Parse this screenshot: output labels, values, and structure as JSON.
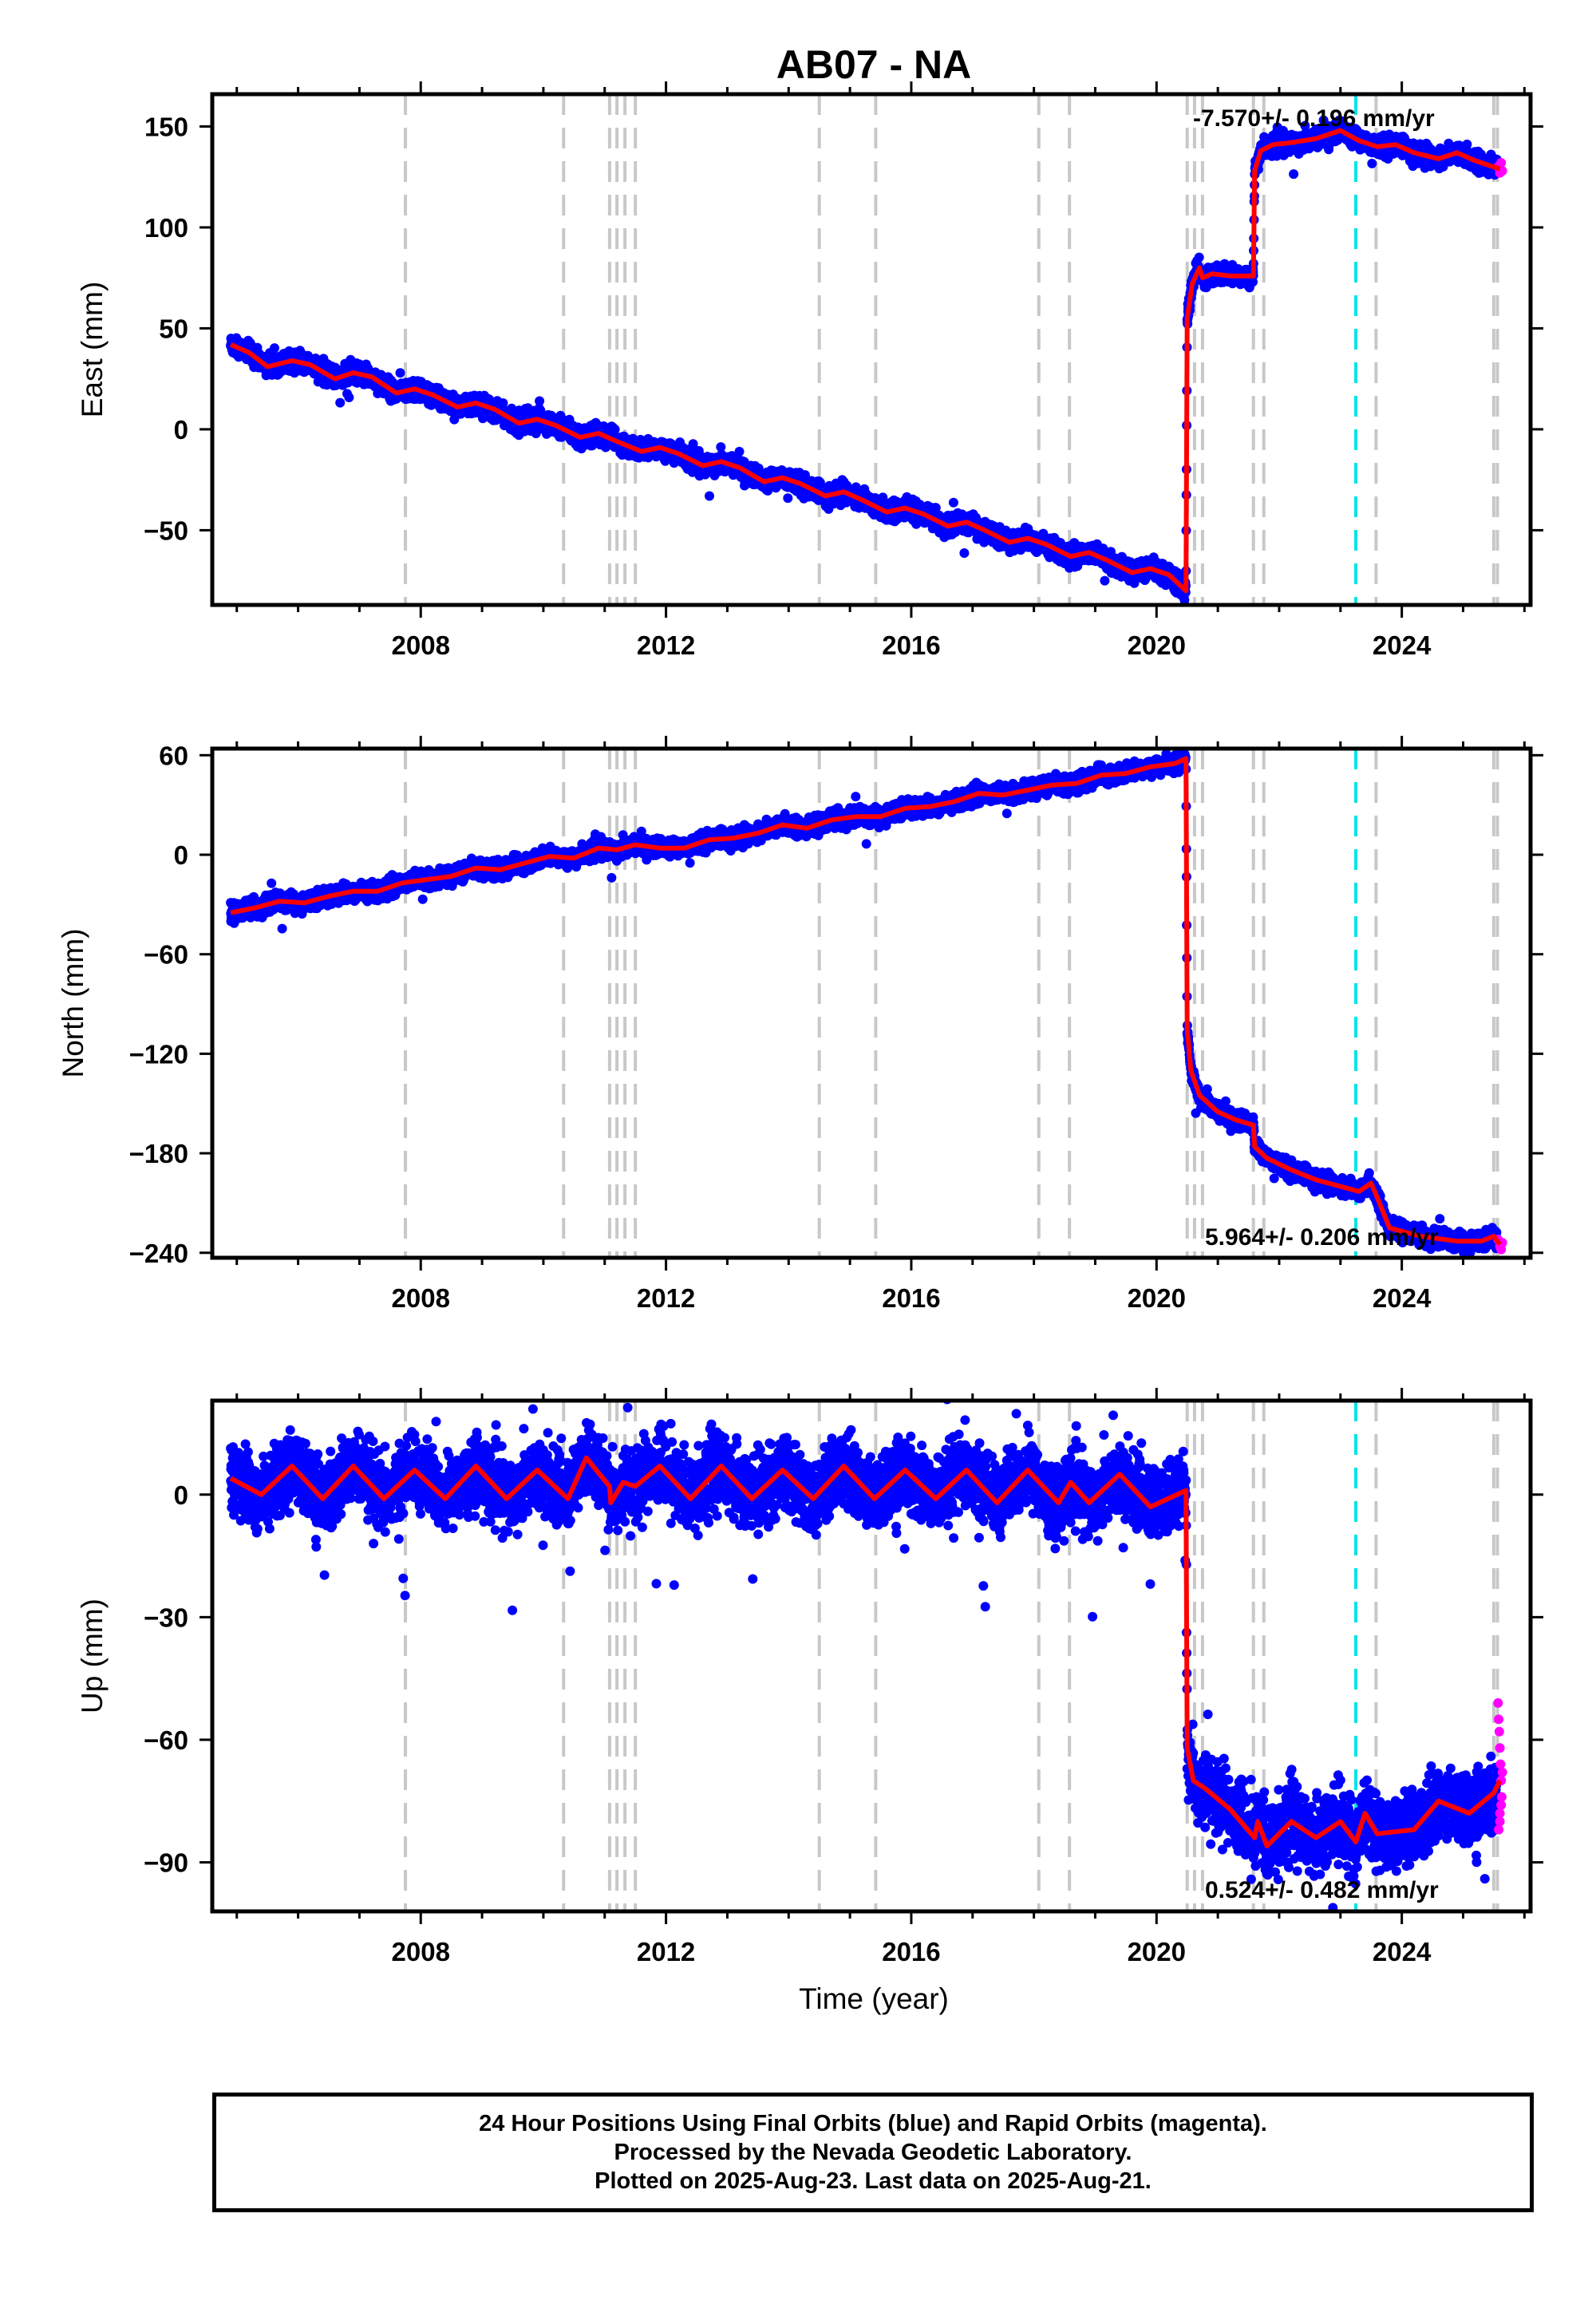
{
  "title": "AB07 - NA",
  "footer": {
    "line1": "24 Hour Positions Using Final Orbits (blue) and Rapid Orbits (magenta).",
    "line2": "Processed by the Nevada Geodetic Laboratory.",
    "line3": "Plotted on 2025-Aug-23. Last data on 2025-Aug-21."
  },
  "colors": {
    "final": "#0000ff",
    "rapid": "#ff00ff",
    "model": "#ff0000",
    "equipment": "#c8c8c8",
    "earthquake": "#00e5e5"
  },
  "chart_data": [
    {
      "type": "scatter",
      "ylabel": "East (mm)",
      "xlabel": "",
      "xlim": [
        2004.6,
        2026.1
      ],
      "ylim": [
        -87,
        166
      ],
      "xticks": [
        2008,
        2012,
        2016,
        2020,
        2024
      ],
      "yticks": [
        -50,
        0,
        50,
        100,
        150
      ],
      "rate_text": "-7.570+/- 0.196 mm/yr",
      "equipment_lines": [
        2007.75,
        2010.33,
        2011.08,
        2011.2,
        2011.33,
        2011.5,
        2014.5,
        2015.42,
        2018.08,
        2018.58,
        2020.5,
        2020.62,
        2020.75,
        2021.58,
        2021.75,
        2023.58,
        2025.5,
        2025.56
      ],
      "earthquake_lines": [
        2023.25
      ],
      "model_nodes": [
        [
          2004.9,
          42
        ],
        [
          2005.2,
          38
        ],
        [
          2005.5,
          31
        ],
        [
          2005.9,
          34
        ],
        [
          2006.2,
          32
        ],
        [
          2006.6,
          25
        ],
        [
          2006.9,
          28
        ],
        [
          2007.2,
          26
        ],
        [
          2007.6,
          18
        ],
        [
          2007.9,
          20
        ],
        [
          2008.2,
          17
        ],
        [
          2008.6,
          11
        ],
        [
          2008.9,
          13
        ],
        [
          2009.2,
          10
        ],
        [
          2009.6,
          3
        ],
        [
          2009.9,
          5
        ],
        [
          2010.2,
          2
        ],
        [
          2010.6,
          -4
        ],
        [
          2010.9,
          -2
        ],
        [
          2011.2,
          -6
        ],
        [
          2011.6,
          -11
        ],
        [
          2011.9,
          -9
        ],
        [
          2012.2,
          -12
        ],
        [
          2012.6,
          -18
        ],
        [
          2012.9,
          -16
        ],
        [
          2013.2,
          -19
        ],
        [
          2013.6,
          -26
        ],
        [
          2013.9,
          -24
        ],
        [
          2014.2,
          -27
        ],
        [
          2014.6,
          -33
        ],
        [
          2014.9,
          -31
        ],
        [
          2015.2,
          -35
        ],
        [
          2015.6,
          -41
        ],
        [
          2015.9,
          -39
        ],
        [
          2016.2,
          -42
        ],
        [
          2016.6,
          -48
        ],
        [
          2016.9,
          -46
        ],
        [
          2017.2,
          -50
        ],
        [
          2017.6,
          -56
        ],
        [
          2017.9,
          -54
        ],
        [
          2018.2,
          -57
        ],
        [
          2018.6,
          -63
        ],
        [
          2018.9,
          -61
        ],
        [
          2019.2,
          -65
        ],
        [
          2019.6,
          -71
        ],
        [
          2019.9,
          -69
        ],
        [
          2020.2,
          -72
        ],
        [
          2020.48,
          -80
        ],
        [
          2020.5,
          55
        ],
        [
          2020.58,
          72
        ],
        [
          2020.7,
          80
        ],
        [
          2020.75,
          75
        ],
        [
          2020.9,
          77
        ],
        [
          2021.2,
          76
        ],
        [
          2021.58,
          76
        ],
        [
          2021.6,
          128
        ],
        [
          2021.7,
          138
        ],
        [
          2021.9,
          141
        ],
        [
          2022.2,
          142
        ],
        [
          2022.6,
          144
        ],
        [
          2023.0,
          148
        ],
        [
          2023.3,
          143
        ],
        [
          2023.6,
          140
        ],
        [
          2023.9,
          141
        ],
        [
          2024.2,
          137
        ],
        [
          2024.6,
          134
        ],
        [
          2024.9,
          137
        ],
        [
          2025.2,
          133
        ],
        [
          2025.6,
          129
        ]
      ],
      "scatter_sd": 2.2,
      "rapid_points": [
        [
          2025.57,
          130
        ],
        [
          2025.6,
          127
        ],
        [
          2025.62,
          132
        ],
        [
          2025.64,
          128
        ]
      ]
    },
    {
      "type": "scatter",
      "ylabel": "North (mm)",
      "xlabel": "",
      "xlim": [
        2004.6,
        2026.1
      ],
      "ylim": [
        -243,
        64
      ],
      "xticks": [
        2008,
        2012,
        2016,
        2020,
        2024
      ],
      "yticks": [
        -240,
        -180,
        -120,
        -60,
        0,
        60
      ],
      "rate_text": "5.964+/- 0.206 mm/yr",
      "equipment_lines": [
        2007.75,
        2010.33,
        2011.08,
        2011.2,
        2011.33,
        2011.5,
        2014.5,
        2015.42,
        2018.08,
        2018.58,
        2020.5,
        2020.62,
        2020.75,
        2021.58,
        2021.75,
        2023.58,
        2025.5,
        2025.56
      ],
      "earthquake_lines": [
        2023.25
      ],
      "model_nodes": [
        [
          2004.9,
          -35
        ],
        [
          2005.3,
          -32
        ],
        [
          2005.7,
          -28
        ],
        [
          2006.1,
          -29
        ],
        [
          2006.5,
          -25
        ],
        [
          2006.9,
          -22
        ],
        [
          2007.3,
          -22
        ],
        [
          2007.7,
          -17
        ],
        [
          2008.1,
          -15
        ],
        [
          2008.5,
          -13
        ],
        [
          2008.9,
          -8
        ],
        [
          2009.3,
          -9
        ],
        [
          2009.7,
          -5
        ],
        [
          2010.1,
          -1
        ],
        [
          2010.5,
          -2
        ],
        [
          2010.9,
          4
        ],
        [
          2011.2,
          3
        ],
        [
          2011.5,
          6
        ],
        [
          2011.9,
          4
        ],
        [
          2012.3,
          4
        ],
        [
          2012.7,
          9
        ],
        [
          2013.1,
          10
        ],
        [
          2013.5,
          13
        ],
        [
          2013.9,
          18
        ],
        [
          2014.3,
          16
        ],
        [
          2014.7,
          21
        ],
        [
          2015.1,
          23
        ],
        [
          2015.5,
          23
        ],
        [
          2015.9,
          28
        ],
        [
          2016.3,
          29
        ],
        [
          2016.7,
          32
        ],
        [
          2017.1,
          37
        ],
        [
          2017.5,
          36
        ],
        [
          2017.9,
          39
        ],
        [
          2018.3,
          42
        ],
        [
          2018.7,
          43
        ],
        [
          2019.1,
          48
        ],
        [
          2019.5,
          49
        ],
        [
          2019.9,
          53
        ],
        [
          2020.3,
          55
        ],
        [
          2020.48,
          58
        ],
        [
          2020.5,
          -105
        ],
        [
          2020.56,
          -130
        ],
        [
          2020.7,
          -145
        ],
        [
          2021.0,
          -155
        ],
        [
          2021.3,
          -160
        ],
        [
          2021.58,
          -163
        ],
        [
          2021.6,
          -176
        ],
        [
          2021.8,
          -183
        ],
        [
          2022.2,
          -190
        ],
        [
          2022.6,
          -196
        ],
        [
          2023.0,
          -200
        ],
        [
          2023.3,
          -203
        ],
        [
          2023.5,
          -198
        ],
        [
          2023.58,
          -205
        ],
        [
          2023.8,
          -225
        ],
        [
          2024.3,
          -230
        ],
        [
          2024.9,
          -233
        ],
        [
          2025.3,
          -233
        ],
        [
          2025.5,
          -230
        ],
        [
          2025.6,
          -235
        ]
      ],
      "scatter_sd": 2.4,
      "rapid_points": [
        [
          2025.57,
          -232
        ],
        [
          2025.6,
          -236
        ],
        [
          2025.62,
          -238
        ],
        [
          2025.64,
          -234
        ]
      ]
    },
    {
      "type": "scatter",
      "ylabel": "Up (mm)",
      "xlabel": "Time (year)",
      "xlim": [
        2004.6,
        2026.1
      ],
      "ylim": [
        -102,
        23
      ],
      "xticks": [
        2008,
        2012,
        2016,
        2020,
        2024
      ],
      "yticks": [
        -90,
        -60,
        -30,
        0
      ],
      "rate_text": "0.524+/- 0.482 mm/yr",
      "equipment_lines": [
        2007.75,
        2010.33,
        2011.08,
        2011.2,
        2011.33,
        2011.5,
        2014.5,
        2015.42,
        2018.08,
        2018.58,
        2020.5,
        2020.62,
        2020.75,
        2021.58,
        2021.75,
        2023.58,
        2025.5,
        2025.56
      ],
      "earthquake_lines": [
        2023.25
      ],
      "model_nodes": [
        [
          2004.9,
          4
        ],
        [
          2005.4,
          0
        ],
        [
          2005.9,
          7
        ],
        [
          2006.4,
          -1
        ],
        [
          2006.9,
          7
        ],
        [
          2007.4,
          -1
        ],
        [
          2007.9,
          6
        ],
        [
          2008.4,
          -1
        ],
        [
          2008.9,
          7
        ],
        [
          2009.4,
          -1
        ],
        [
          2009.9,
          6
        ],
        [
          2010.4,
          -1
        ],
        [
          2010.7,
          9
        ],
        [
          2011.08,
          2
        ],
        [
          2011.1,
          -2
        ],
        [
          2011.3,
          3
        ],
        [
          2011.5,
          2
        ],
        [
          2011.9,
          7
        ],
        [
          2012.4,
          -1
        ],
        [
          2012.9,
          7
        ],
        [
          2013.4,
          -1
        ],
        [
          2013.9,
          6
        ],
        [
          2014.4,
          -1
        ],
        [
          2014.9,
          7
        ],
        [
          2015.4,
          -1
        ],
        [
          2015.9,
          6
        ],
        [
          2016.4,
          -1
        ],
        [
          2016.9,
          6
        ],
        [
          2017.4,
          -2
        ],
        [
          2017.9,
          6
        ],
        [
          2018.4,
          -2
        ],
        [
          2018.6,
          3
        ],
        [
          2018.9,
          -2
        ],
        [
          2019.4,
          5
        ],
        [
          2019.9,
          -3
        ],
        [
          2020.48,
          1
        ],
        [
          2020.5,
          -62
        ],
        [
          2020.6,
          -70
        ],
        [
          2020.8,
          -72
        ],
        [
          2021.2,
          -77
        ],
        [
          2021.6,
          -84
        ],
        [
          2021.65,
          -80
        ],
        [
          2021.8,
          -86
        ],
        [
          2022.2,
          -80
        ],
        [
          2022.6,
          -84
        ],
        [
          2023.0,
          -80
        ],
        [
          2023.25,
          -85
        ],
        [
          2023.4,
          -78
        ],
        [
          2023.6,
          -83
        ],
        [
          2024.2,
          -82
        ],
        [
          2024.6,
          -75
        ],
        [
          2025.1,
          -78
        ],
        [
          2025.5,
          -73
        ],
        [
          2025.6,
          -70
        ]
      ],
      "scatter_sd": 4.0,
      "rapid_points": [
        [
          2025.57,
          -51
        ],
        [
          2025.58,
          -55
        ],
        [
          2025.59,
          -58
        ],
        [
          2025.6,
          -62
        ],
        [
          2025.61,
          -66
        ],
        [
          2025.62,
          -70
        ],
        [
          2025.63,
          -74
        ],
        [
          2025.6,
          -78
        ],
        [
          2025.58,
          -82
        ],
        [
          2025.64,
          -68
        ],
        [
          2025.62,
          -76
        ],
        [
          2025.6,
          -80
        ]
      ]
    }
  ]
}
